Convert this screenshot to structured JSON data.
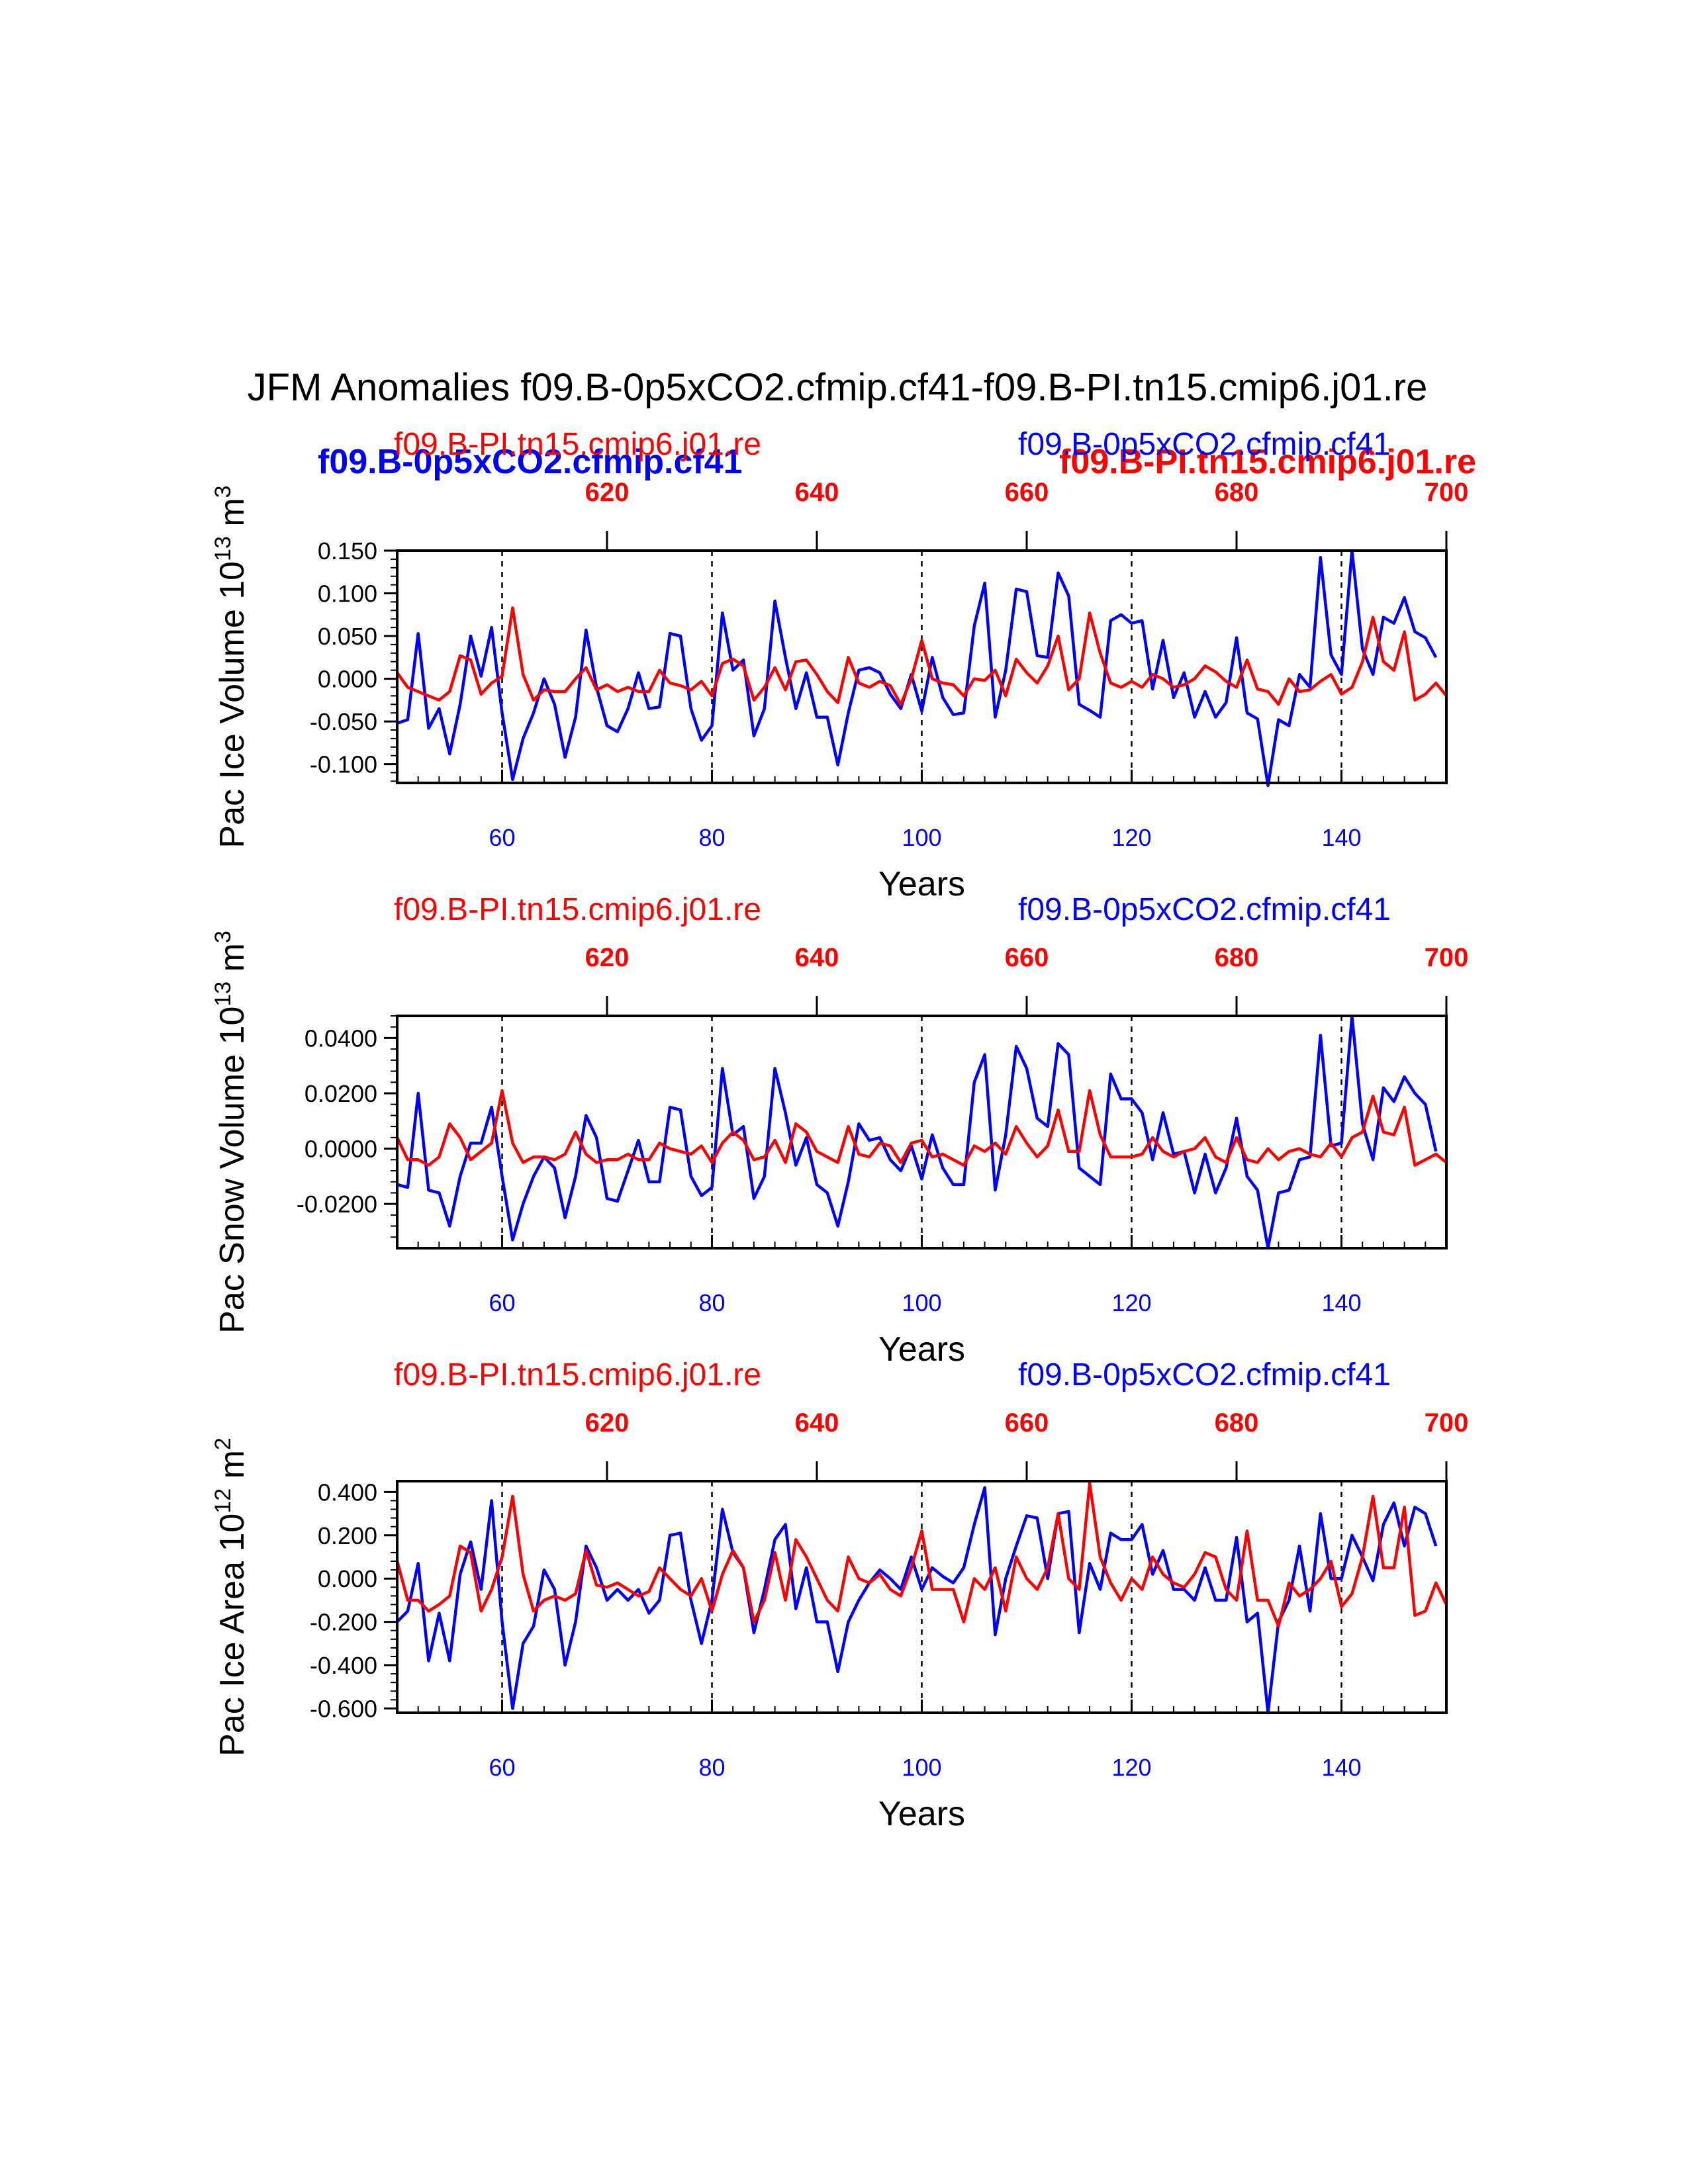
{
  "title": "JFM Anomalies f09.B-0p5xCO2.cfmip.cf41-f09.B-PI.tn15.cmip6.j01.re",
  "legend": {
    "blue_label": "f09.B-0p5xCO2.cfmip.cf41",
    "red_label": "f09.B-PI.tn15.cmip6.j01.re"
  },
  "colors": {
    "case": "#0000ff",
    "control": "#ff0000"
  },
  "chart_data": [
    {
      "type": "line",
      "ylabel": "Pac Ice Volume 10",
      "ylabel_exp": "13",
      "ylabel_unit": " m",
      "ylabel_unit_exp": "3",
      "xlabel": "Years",
      "top_label_left": "f09.B-PI.tn15.cmip6.j01.re",
      "top_label_right": "f09.B-0p5xCO2.cfmip.cf41",
      "xlim": [
        50,
        150
      ],
      "top_xlim": [
        600,
        700
      ],
      "ylim": [
        -0.122,
        0.15
      ],
      "yticks": [
        0.15,
        0.1,
        0.05,
        0.0,
        -0.05,
        -0.1
      ],
      "ytick_labels": [
        "0.150",
        "0.100",
        "0.050",
        "0.000",
        "-0.050",
        "-0.100"
      ],
      "xticks": [
        60,
        80,
        100,
        120,
        140
      ],
      "xtick_labels": [
        "60",
        "80",
        "100",
        "120",
        "140"
      ],
      "top_xticks": [
        620,
        640,
        660,
        680,
        700
      ],
      "top_xtick_labels": [
        "620",
        "640",
        "660",
        "680",
        "700"
      ],
      "vlines": [
        60,
        80,
        100,
        120,
        140
      ],
      "x_start": 50,
      "series": [
        {
          "name": "f09.B-0p5xCO2.cfmip.cf41",
          "color": "#0000ff",
          "values": [
            -0.052,
            -0.048,
            0.053,
            -0.058,
            -0.035,
            -0.088,
            -0.03,
            0.05,
            0.003,
            0.06,
            -0.04,
            -0.118,
            -0.07,
            -0.04,
            0.0,
            -0.03,
            -0.092,
            -0.045,
            0.057,
            -0.01,
            -0.055,
            -0.062,
            -0.035,
            0.007,
            -0.035,
            -0.033,
            0.053,
            0.05,
            -0.035,
            -0.072,
            -0.055,
            0.077,
            0.01,
            0.022,
            -0.067,
            -0.035,
            0.091,
            0.025,
            -0.035,
            0.007,
            -0.045,
            -0.045,
            -0.101,
            -0.04,
            0.01,
            0.013,
            0.007,
            -0.018,
            -0.035,
            0.005,
            -0.038,
            0.025,
            -0.022,
            -0.042,
            -0.04,
            0.062,
            0.112,
            -0.045,
            0.01,
            0.105,
            0.102,
            0.027,
            0.025,
            0.124,
            0.097,
            -0.03,
            -0.037,
            -0.045,
            0.068,
            0.075,
            0.065,
            0.068,
            -0.012,
            0.045,
            -0.022,
            0.007,
            -0.045,
            -0.015,
            -0.045,
            -0.028,
            0.048,
            -0.04,
            -0.047,
            -0.125,
            -0.048,
            -0.055,
            0.005,
            -0.01,
            0.142,
            0.028,
            0.005,
            0.15,
            0.035,
            0.005,
            0.072,
            0.065,
            0.095,
            0.055,
            0.048,
            0.025
          ]
        },
        {
          "name": "f09.B-PI.tn15.cmip6.j01.re",
          "color": "#ff0000",
          "values": [
            0.007,
            -0.01,
            -0.015,
            -0.02,
            -0.025,
            -0.015,
            0.027,
            0.022,
            -0.018,
            -0.005,
            0.003,
            0.083,
            0.005,
            -0.025,
            -0.013,
            -0.015,
            -0.015,
            0.0,
            0.013,
            -0.013,
            -0.007,
            -0.015,
            -0.01,
            -0.015,
            -0.015,
            0.01,
            -0.005,
            -0.008,
            -0.013,
            -0.003,
            -0.02,
            0.018,
            0.023,
            0.015,
            -0.025,
            -0.01,
            0.013,
            -0.013,
            0.02,
            0.022,
            0.005,
            -0.015,
            -0.028,
            0.025,
            -0.005,
            -0.01,
            -0.003,
            -0.008,
            -0.03,
            0.0,
            0.045,
            0.0,
            -0.005,
            -0.007,
            -0.02,
            0.0,
            -0.002,
            0.01,
            -0.02,
            0.023,
            0.007,
            -0.005,
            0.015,
            0.05,
            -0.013,
            0.0,
            0.077,
            0.03,
            -0.005,
            -0.01,
            -0.003,
            -0.01,
            0.005,
            0.0,
            -0.01,
            -0.007,
            0.0,
            0.015,
            0.008,
            -0.003,
            -0.01,
            0.022,
            -0.012,
            -0.015,
            -0.03,
            0.0,
            -0.015,
            -0.013,
            -0.003,
            0.005,
            -0.018,
            -0.01,
            0.02,
            0.072,
            0.02,
            0.01,
            0.055,
            -0.025,
            -0.018,
            -0.005,
            -0.02
          ]
        }
      ]
    },
    {
      "type": "line",
      "ylabel": "Pac Snow Volume 10",
      "ylabel_exp": "13",
      "ylabel_unit": " m",
      "ylabel_unit_exp": "3",
      "xlabel": "Years",
      "top_label_left": "f09.B-PI.tn15.cmip6.j01.re",
      "top_label_right": "f09.B-0p5xCO2.cfmip.cf41",
      "xlim": [
        50,
        150
      ],
      "top_xlim": [
        600,
        700
      ],
      "ylim": [
        -0.036,
        0.048
      ],
      "yticks": [
        0.04,
        0.02,
        0.0,
        -0.02
      ],
      "ytick_labels": [
        "0.0400",
        "0.0200",
        "0.0000",
        "-0.0200"
      ],
      "xticks": [
        60,
        80,
        100,
        120,
        140
      ],
      "xtick_labels": [
        "60",
        "80",
        "100",
        "120",
        "140"
      ],
      "top_xticks": [
        620,
        640,
        660,
        680,
        700
      ],
      "top_xtick_labels": [
        "620",
        "640",
        "660",
        "680",
        "700"
      ],
      "vlines": [
        60,
        80,
        100,
        120,
        140
      ],
      "x_start": 50,
      "series": [
        {
          "name": "f09.B-0p5xCO2.cfmip.cf41",
          "color": "#0000ff",
          "values": [
            -0.013,
            -0.014,
            0.02,
            -0.015,
            -0.016,
            -0.028,
            -0.01,
            0.002,
            0.002,
            0.015,
            -0.01,
            -0.033,
            -0.02,
            -0.01,
            -0.003,
            -0.007,
            -0.025,
            -0.01,
            0.012,
            0.004,
            -0.018,
            -0.019,
            -0.008,
            0.003,
            -0.012,
            -0.012,
            0.015,
            0.014,
            -0.01,
            -0.017,
            -0.014,
            0.029,
            0.005,
            0.008,
            -0.018,
            -0.01,
            0.029,
            0.013,
            -0.006,
            0.004,
            -0.013,
            -0.016,
            -0.028,
            -0.012,
            0.009,
            0.003,
            0.004,
            -0.004,
            -0.008,
            0.001,
            -0.011,
            0.005,
            -0.007,
            -0.013,
            -0.013,
            0.024,
            0.034,
            -0.015,
            0.005,
            0.037,
            0.029,
            0.011,
            0.008,
            0.038,
            0.034,
            -0.007,
            -0.01,
            -0.013,
            0.027,
            0.018,
            0.018,
            0.013,
            -0.004,
            0.013,
            -0.002,
            -0.001,
            -0.016,
            -0.002,
            -0.016,
            -0.007,
            0.011,
            -0.01,
            -0.015,
            -0.036,
            -0.016,
            -0.015,
            -0.004,
            -0.003,
            0.041,
            0.001,
            0.002,
            0.048,
            0.009,
            -0.004,
            0.022,
            0.017,
            0.026,
            0.02,
            0.016,
            -0.001
          ]
        },
        {
          "name": "f09.B-PI.tn15.cmip6.j01.re",
          "color": "#ff0000",
          "values": [
            0.004,
            -0.004,
            -0.004,
            -0.006,
            -0.003,
            0.009,
            0.004,
            -0.004,
            -0.001,
            0.002,
            0.021,
            0.002,
            -0.005,
            -0.003,
            -0.003,
            -0.004,
            -0.002,
            0.006,
            -0.002,
            -0.005,
            -0.004,
            -0.004,
            -0.002,
            -0.004,
            -0.004,
            0.002,
            0.0,
            -0.001,
            -0.002,
            0.001,
            -0.005,
            0.002,
            0.006,
            0.003,
            -0.004,
            -0.003,
            0.003,
            -0.005,
            0.009,
            0.006,
            -0.001,
            -0.003,
            -0.005,
            0.008,
            -0.002,
            -0.003,
            0.002,
            0.001,
            -0.005,
            0.002,
            0.003,
            -0.003,
            -0.002,
            -0.004,
            -0.006,
            0.001,
            -0.001,
            0.002,
            -0.002,
            0.008,
            0.002,
            -0.003,
            0.001,
            0.014,
            -0.001,
            -0.001,
            0.021,
            0.005,
            -0.003,
            -0.003,
            -0.003,
            -0.002,
            0.004,
            -0.001,
            -0.003,
            -0.001,
            0.0,
            0.004,
            -0.003,
            -0.005,
            0.004,
            -0.004,
            -0.005,
            0.0,
            -0.004,
            -0.001,
            0.0,
            -0.002,
            -0.003,
            0.002,
            -0.003,
            0.004,
            0.006,
            0.019,
            0.006,
            0.005,
            0.015,
            -0.006,
            -0.004,
            -0.002,
            -0.005
          ]
        }
      ]
    },
    {
      "type": "line",
      "ylabel": "Pac Ice Area 10",
      "ylabel_exp": "12",
      "ylabel_unit": " m",
      "ylabel_unit_exp": "2",
      "xlabel": "Years",
      "top_label_left": "f09.B-PI.tn15.cmip6.j01.re",
      "top_label_right": "f09.B-0p5xCO2.cfmip.cf41",
      "xlim": [
        50,
        150
      ],
      "top_xlim": [
        600,
        700
      ],
      "ylim": [
        -0.62,
        0.45
      ],
      "yticks": [
        0.4,
        0.2,
        0.0,
        -0.2,
        -0.4,
        -0.6
      ],
      "ytick_labels": [
        "0.400",
        "0.200",
        "0.000",
        "-0.200",
        "-0.400",
        "-0.600"
      ],
      "xticks": [
        60,
        80,
        100,
        120,
        140
      ],
      "xtick_labels": [
        "60",
        "80",
        "100",
        "120",
        "140"
      ],
      "top_xticks": [
        620,
        640,
        660,
        680,
        700
      ],
      "top_xtick_labels": [
        "620",
        "640",
        "660",
        "680",
        "700"
      ],
      "vlines": [
        60,
        80,
        100,
        120,
        140
      ],
      "x_start": 50,
      "series": [
        {
          "name": "f09.B-0p5xCO2.cfmip.cf41",
          "color": "#0000ff",
          "values": [
            -0.2,
            -0.15,
            0.07,
            -0.38,
            -0.16,
            -0.38,
            0.02,
            0.17,
            -0.05,
            0.36,
            -0.2,
            -0.6,
            -0.3,
            -0.22,
            0.04,
            -0.05,
            -0.4,
            -0.2,
            0.15,
            0.05,
            -0.1,
            -0.05,
            -0.1,
            -0.05,
            -0.16,
            -0.1,
            0.2,
            0.21,
            -0.1,
            -0.3,
            -0.1,
            0.32,
            0.12,
            0.05,
            -0.25,
            -0.05,
            0.18,
            0.25,
            -0.14,
            0.05,
            -0.2,
            -0.2,
            -0.43,
            -0.2,
            -0.1,
            -0.02,
            0.04,
            0.0,
            -0.05,
            0.1,
            -0.05,
            0.05,
            0.01,
            -0.02,
            0.05,
            0.25,
            0.42,
            -0.26,
            0.0,
            0.15,
            0.29,
            0.28,
            0.0,
            0.3,
            0.31,
            -0.25,
            0.07,
            -0.05,
            0.21,
            0.18,
            0.18,
            0.25,
            0.02,
            0.13,
            -0.05,
            -0.05,
            -0.1,
            0.05,
            -0.1,
            -0.1,
            0.19,
            -0.2,
            -0.16,
            -0.62,
            -0.2,
            -0.1,
            0.15,
            -0.15,
            0.3,
            0.0,
            0.0,
            0.2,
            0.1,
            -0.01,
            0.25,
            0.35,
            0.15,
            0.33,
            0.3,
            0.15
          ]
        },
        {
          "name": "f09.B-PI.tn15.cmip6.j01.re",
          "color": "#ff0000",
          "values": [
            0.08,
            -0.1,
            -0.1,
            -0.15,
            -0.12,
            -0.08,
            0.15,
            0.12,
            -0.15,
            -0.05,
            0.1,
            0.38,
            0.02,
            -0.15,
            -0.1,
            -0.08,
            -0.1,
            -0.07,
            0.13,
            -0.03,
            -0.04,
            -0.02,
            -0.05,
            -0.08,
            -0.06,
            0.05,
            0.0,
            -0.05,
            -0.08,
            0.0,
            -0.15,
            0.02,
            0.13,
            0.05,
            -0.2,
            -0.1,
            0.12,
            -0.1,
            0.18,
            0.1,
            0.0,
            -0.1,
            -0.15,
            0.1,
            0.0,
            -0.02,
            0.02,
            -0.05,
            -0.08,
            0.05,
            0.22,
            -0.05,
            -0.05,
            -0.05,
            -0.2,
            0.0,
            -0.05,
            0.05,
            -0.15,
            0.1,
            0.0,
            -0.05,
            0.05,
            0.3,
            0.0,
            -0.05,
            0.44,
            0.1,
            -0.02,
            -0.1,
            0.0,
            -0.05,
            0.1,
            0.02,
            -0.02,
            -0.04,
            0.02,
            0.12,
            0.1,
            -0.05,
            -0.1,
            0.22,
            -0.1,
            -0.1,
            -0.22,
            -0.02,
            -0.08,
            -0.05,
            0.0,
            0.08,
            -0.13,
            -0.07,
            0.1,
            0.38,
            0.05,
            0.05,
            0.33,
            -0.17,
            -0.15,
            -0.02,
            -0.12
          ]
        }
      ]
    }
  ]
}
